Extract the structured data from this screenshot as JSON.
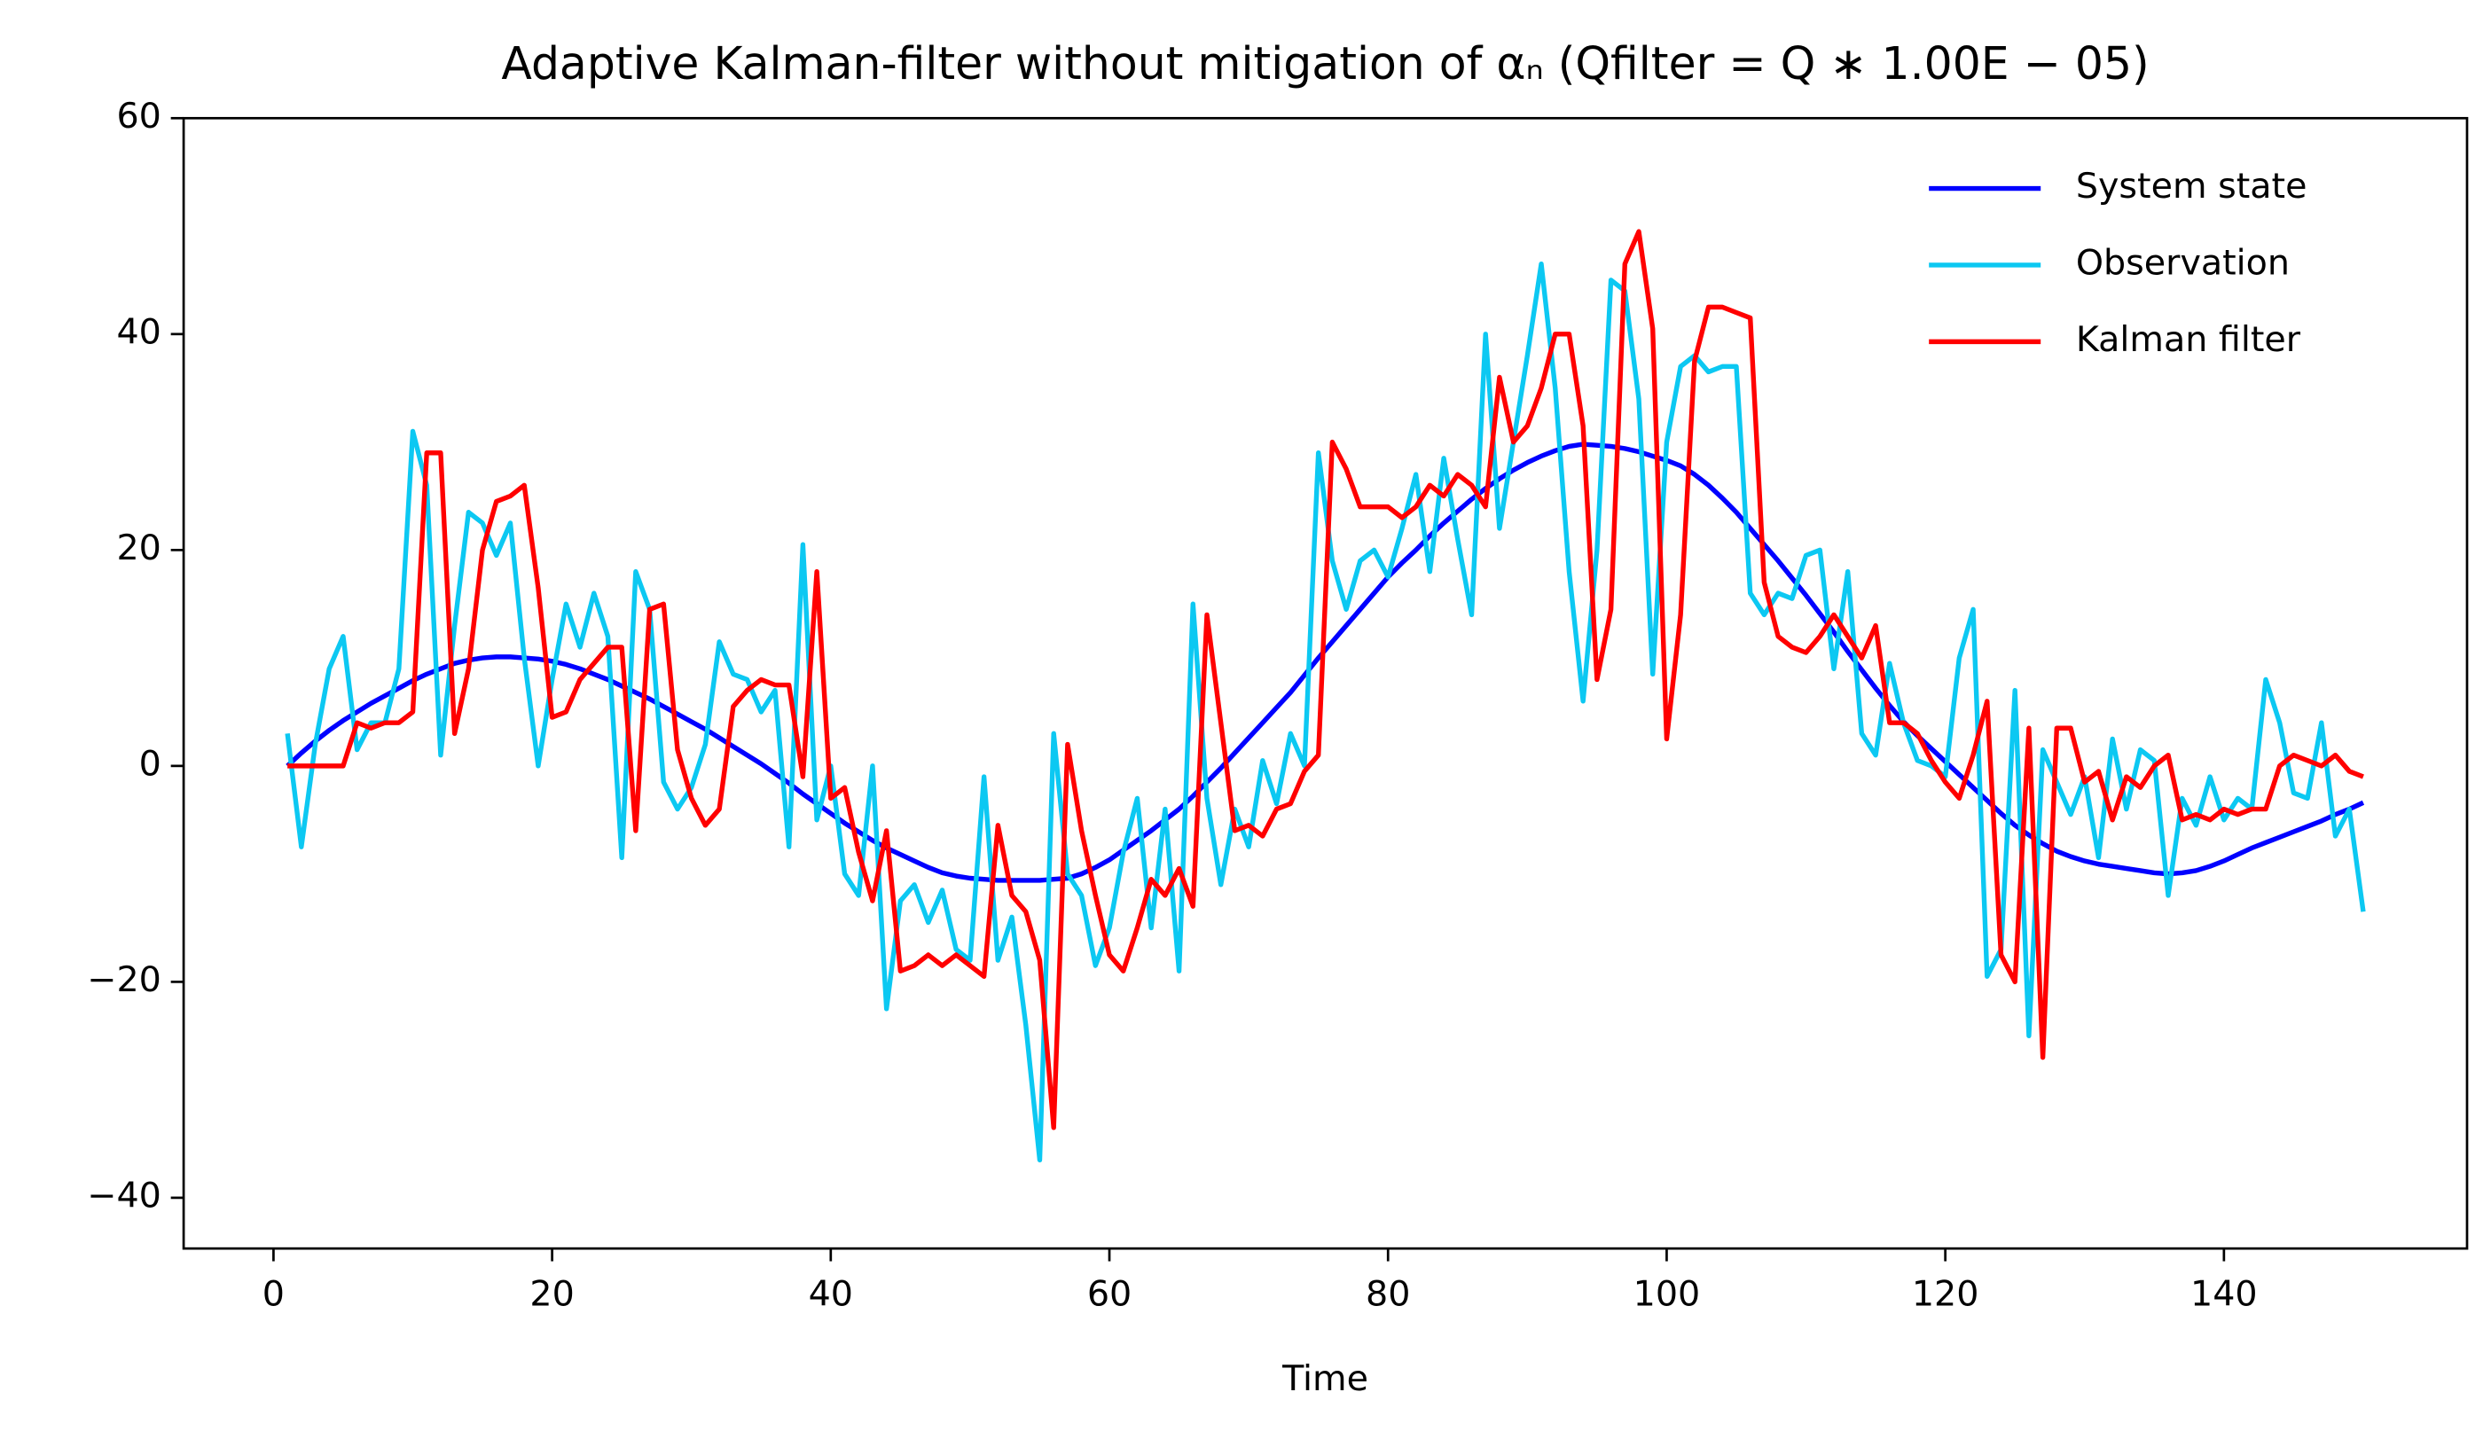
{
  "chart_data": {
    "type": "line",
    "title": "Adaptive Kalman-filter without mitigation of αₙ (Qfilter = Q ∗ 1.00E − 05)",
    "xlabel": "Time",
    "x": [
      1,
      2,
      3,
      4,
      5,
      6,
      7,
      8,
      9,
      10,
      11,
      12,
      13,
      14,
      15,
      16,
      17,
      18,
      19,
      20,
      21,
      22,
      23,
      24,
      25,
      26,
      27,
      28,
      29,
      30,
      31,
      32,
      33,
      34,
      35,
      36,
      37,
      38,
      39,
      40,
      41,
      42,
      43,
      44,
      45,
      46,
      47,
      48,
      49,
      50,
      51,
      52,
      53,
      54,
      55,
      56,
      57,
      58,
      59,
      60,
      61,
      62,
      63,
      64,
      65,
      66,
      67,
      68,
      69,
      70,
      71,
      72,
      73,
      74,
      75,
      76,
      77,
      78,
      79,
      80,
      81,
      82,
      83,
      84,
      85,
      86,
      87,
      88,
      89,
      90,
      91,
      92,
      93,
      94,
      95,
      96,
      97,
      98,
      99,
      100,
      101,
      102,
      103,
      104,
      105,
      106,
      107,
      108,
      109,
      110,
      111,
      112,
      113,
      114,
      115,
      116,
      117,
      118,
      119,
      120,
      121,
      122,
      123,
      124,
      125,
      126,
      127,
      128,
      129,
      130,
      131,
      132,
      133,
      134,
      135,
      136,
      137,
      138,
      139,
      140,
      141,
      142,
      143,
      144,
      145,
      146,
      147,
      148,
      149,
      150
    ],
    "series": [
      {
        "name": "System state",
        "color": "#0000ff",
        "values": [
          0,
          1.2,
          2.3,
          3.3,
          4.2,
          5.0,
          5.8,
          6.5,
          7.2,
          7.9,
          8.5,
          9.0,
          9.5,
          9.8,
          10.0,
          10.1,
          10.1,
          10.0,
          9.9,
          9.7,
          9.4,
          9.0,
          8.5,
          8.0,
          7.4,
          6.8,
          6.2,
          5.5,
          4.8,
          4.1,
          3.4,
          2.6,
          1.8,
          1.0,
          0.2,
          -0.7,
          -1.6,
          -2.6,
          -3.5,
          -4.4,
          -5.3,
          -6.1,
          -6.9,
          -7.6,
          -8.2,
          -8.8,
          -9.4,
          -9.9,
          -10.2,
          -10.4,
          -10.5,
          -10.6,
          -10.6,
          -10.6,
          -10.6,
          -10.5,
          -10.4,
          -10.0,
          -9.4,
          -8.7,
          -7.8,
          -6.9,
          -6.0,
          -5.0,
          -4.0,
          -2.8,
          -1.5,
          -0.2,
          1.2,
          2.6,
          4.0,
          5.4,
          6.8,
          8.4,
          10.0,
          11.5,
          13.0,
          14.5,
          16.0,
          17.5,
          18.8,
          20.0,
          21.3,
          22.5,
          23.6,
          24.7,
          25.7,
          26.6,
          27.4,
          28.1,
          28.7,
          29.2,
          29.6,
          29.8,
          29.7,
          29.6,
          29.4,
          29.1,
          28.7,
          28.3,
          27.8,
          27.0,
          26.0,
          24.8,
          23.5,
          22.0,
          20.5,
          19.0,
          17.4,
          15.8,
          14.1,
          12.4,
          10.6,
          8.9,
          7.2,
          5.6,
          4.1,
          2.8,
          1.6,
          0.4,
          -0.8,
          -2.0,
          -3.2,
          -4.4,
          -5.5,
          -6.4,
          -7.2,
          -7.9,
          -8.4,
          -8.8,
          -9.1,
          -9.3,
          -9.5,
          -9.7,
          -9.9,
          -10.0,
          -9.9,
          -9.7,
          -9.3,
          -8.8,
          -8.2,
          -7.6,
          -7.1,
          -6.6,
          -6.1,
          -5.6,
          -5.1,
          -4.5,
          -4.0,
          -3.4
        ]
      },
      {
        "name": "Observation",
        "color": "#0cc8f2",
        "values": [
          3,
          -7.5,
          2,
          9,
          12,
          1.5,
          4,
          4,
          9,
          31,
          26,
          1,
          13,
          23.5,
          22.5,
          19.5,
          22.5,
          10,
          0,
          8,
          15,
          11,
          16,
          12,
          -8.5,
          18,
          14.5,
          -1.5,
          -4,
          -2,
          2,
          11.5,
          8.5,
          8,
          5,
          7,
          -7.5,
          20.5,
          -5,
          0,
          -10,
          -12,
          0,
          -22.5,
          -12.5,
          -11,
          -14.5,
          -11.5,
          -17,
          -18,
          -1,
          -18,
          -14,
          -24,
          -36.5,
          3,
          -10,
          -12,
          -18.5,
          -15,
          -8,
          -3,
          -15,
          -4,
          -19,
          15,
          -3,
          -11,
          -4,
          -7.5,
          0.5,
          -3.5,
          3,
          0,
          29,
          19,
          14.5,
          19,
          20,
          17.5,
          22,
          27,
          18,
          28.5,
          21,
          14,
          40,
          22,
          30,
          38,
          46.5,
          35,
          18,
          6,
          20,
          45,
          44,
          34,
          8.5,
          30,
          37,
          38,
          36.5,
          37,
          37,
          16,
          14,
          16,
          15.5,
          19.5,
          20,
          9,
          18,
          3,
          1,
          9.5,
          4,
          0.5,
          0,
          -1,
          10,
          14.5,
          -19.5,
          -17,
          7,
          -25,
          1.5,
          -1.5,
          -4.5,
          -1,
          -8.5,
          2.5,
          -4,
          1.5,
          0.5,
          -12,
          -3,
          -5.5,
          -1,
          -5,
          -3,
          -4,
          8,
          4,
          -2.5,
          -3,
          4,
          -6.5,
          -4,
          -13.5
        ]
      },
      {
        "name": "Kalman filter",
        "color": "#ff0000",
        "values": [
          0,
          0,
          0,
          0,
          0,
          4,
          3.5,
          4,
          4,
          5,
          29,
          29,
          3,
          9,
          20,
          24.5,
          25,
          26,
          16.5,
          4.5,
          5,
          8,
          9.5,
          11,
          11,
          -6,
          14.5,
          15,
          1.5,
          -3,
          -5.5,
          -4,
          5.5,
          7,
          8,
          7.5,
          7.5,
          -1,
          18,
          -3,
          -2,
          -8,
          -12.5,
          -6,
          -19,
          -18.5,
          -17.5,
          -18.5,
          -17.5,
          -18.5,
          -19.5,
          -5.5,
          -12,
          -13.5,
          -18,
          -33.5,
          2,
          -6,
          -12,
          -17.5,
          -19,
          -15,
          -10.5,
          -12,
          -9.5,
          -13,
          14,
          4,
          -6,
          -5.5,
          -6.5,
          -4,
          -3.5,
          -0.5,
          1,
          30,
          27.5,
          24,
          24,
          24,
          23,
          24,
          26,
          25,
          27,
          26,
          24,
          36,
          30,
          31.5,
          35,
          40,
          40,
          31.5,
          8,
          14.5,
          46.5,
          49.5,
          40.5,
          2.5,
          14,
          37.5,
          42.5,
          42.5,
          42,
          41.5,
          17,
          12,
          11,
          10.5,
          12,
          14,
          12,
          10,
          13,
          4,
          4,
          3,
          0.5,
          -1.5,
          -3,
          1,
          6,
          -17.5,
          -20,
          3.5,
          -27,
          3.5,
          3.5,
          -1.5,
          -0.5,
          -5,
          -1,
          -2,
          0,
          1,
          -5,
          -4.5,
          -5,
          -4,
          -4.5,
          -4,
          -4,
          0,
          1,
          0.5,
          0,
          1,
          -0.5,
          -1
        ]
      }
    ],
    "xlim": [
      -6.45,
      157.45
    ],
    "ylim": [
      -44.7,
      60
    ],
    "xticks": [
      0,
      20,
      40,
      60,
      80,
      100,
      120,
      140
    ],
    "yticks": [
      {
        "value": -40,
        "label": "−40"
      },
      {
        "value": -20,
        "label": "−20"
      },
      0,
      20,
      40,
      60
    ],
    "legend": "upper right"
  }
}
